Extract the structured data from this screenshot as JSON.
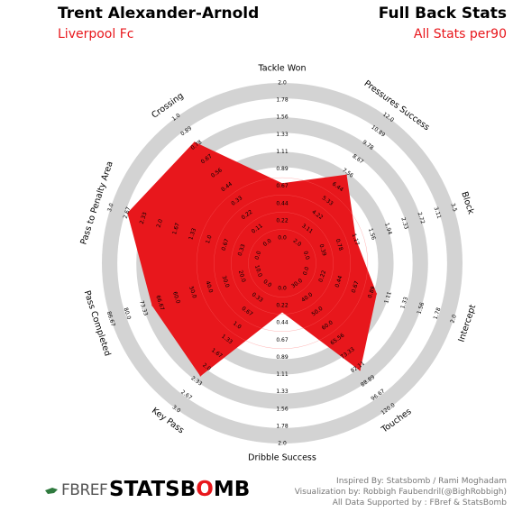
{
  "header": {
    "player": "Trent Alexander-Arnold",
    "team": "Liverpool Fc",
    "title": "Full Back Stats",
    "subtitle": "All Stats per90"
  },
  "colors": {
    "accent": "#e8171c",
    "ring": "#d3d3d3"
  },
  "chart_data": {
    "type": "radar",
    "params": [
      {
        "label": "Tackle Won",
        "ticks": [
          "0.0",
          "0.22",
          "0.44",
          "0.67",
          "0.89",
          "1.11",
          "1.33",
          "1.56",
          "1.78",
          "2.0"
        ],
        "value": 0.7
      },
      {
        "label": "Pressures Success",
        "ticks": [
          "2.0",
          "3.11",
          "4.22",
          "5.33",
          "6.44",
          "7.56",
          "8.67",
          "9.78",
          "10.89",
          "12.0"
        ],
        "value": 7.4
      },
      {
        "label": "Block",
        "ticks": [
          "0.0",
          "0.39",
          "0.78",
          "1.17",
          "1.56",
          "1.94",
          "2.33",
          "2.72",
          "3.11",
          "3.5"
        ],
        "value": 1.17
      },
      {
        "label": "Intercept",
        "ticks": [
          "0.0",
          "0.22",
          "0.44",
          "0.67",
          "0.89",
          "1.11",
          "1.33",
          "1.56",
          "1.78",
          "2.0"
        ],
        "value": 0.95
      },
      {
        "label": "Touches",
        "ticks": [
          "30.0",
          "40.0",
          "50.0",
          "60.0",
          "65.56",
          "73.33",
          "82.11",
          "88.89",
          "96.67",
          "120.0"
        ],
        "value": 92.0
      },
      {
        "label": "Dribble Success",
        "ticks": [
          "0.0",
          "0.22",
          "0.44",
          "0.67",
          "0.89",
          "1.11",
          "1.33",
          "1.56",
          "1.78",
          "2.0"
        ],
        "value": 0.3
      },
      {
        "label": "Key Pass",
        "ticks": [
          "0.0",
          "0.33",
          "0.67",
          "1.0",
          "1.33",
          "1.67",
          "2.0",
          "2.33",
          "2.67",
          "3.0"
        ],
        "value": 2.2
      },
      {
        "label": "Pass Completed",
        "ticks": [
          "10.0",
          "20.0",
          "30.0",
          "40.0",
          "50.0",
          "60.0",
          "66.67",
          "73.33",
          "80.0",
          "86.67"
        ],
        "value": 65.0
      },
      {
        "label": "Pass to Penalty Area",
        "ticks": [
          "0.0",
          "0.33",
          "0.67",
          "1.0",
          "1.33",
          "1.67",
          "2.0",
          "2.33",
          "2.67",
          "3.0"
        ],
        "value": 2.65
      },
      {
        "label": "Crossing",
        "ticks": [
          "0.0",
          "0.11",
          "0.22",
          "0.33",
          "0.44",
          "0.56",
          "0.67",
          "0.78",
          "0.89",
          "1.0"
        ],
        "value": 0.8
      }
    ],
    "tick_labels_shown": {
      "Tackle Won": [
        "0.0",
        "0.22",
        "0.44",
        "0.67",
        "0.89",
        "1.11",
        "1.33",
        "1.56",
        "1.78",
        "2.0"
      ],
      "Pressures Success": [
        "2.0",
        "2.67",
        "3.33",
        "4.0",
        "5.0",
        "5.76",
        "6.0",
        "4.33",
        "4.89",
        "5.44",
        "6.0"
      ],
      "Block": [
        "0.39",
        "0.78",
        "1.17",
        "1.56",
        "1.94",
        "2.33",
        "2.72",
        "3.11",
        "3.5"
      ],
      "Intercept": [
        "0.44",
        "0.89",
        "1.11",
        "1.33",
        "1.56",
        "1.78",
        "2.0"
      ],
      "Touches": [
        "0.0",
        "0.0",
        "50.0",
        "65.56",
        "73.33",
        "82.11",
        "88.89",
        "96.67",
        "104.44",
        "112.22",
        "120.0"
      ],
      "Dribble Success": [
        "0.0",
        "0.22",
        "0.44",
        "0.67",
        "0.89",
        "1.11",
        "1.33",
        "1.56",
        "1.78",
        "2.0"
      ],
      "Key Pass": [
        "0.33",
        "0.67",
        "1.0",
        "1.33",
        "1.67",
        "2.0",
        "2.33",
        "2.67",
        "3.0"
      ],
      "Pass Completed": [
        "0.0",
        "0.0",
        "26.67",
        "33.33",
        "40.0",
        "53.33",
        "59.33",
        "66.67",
        "73.33",
        "80.0"
      ],
      "Pass to Penalty Area": [
        "0.0",
        "0.33",
        "0.67",
        "1.0",
        "1.33",
        "1.67",
        "2.0",
        "2.33",
        "2.67",
        "3.0"
      ],
      "Crossing": [
        "0.0",
        "0.11",
        "0.22",
        "0.33",
        "0.44",
        "0.56",
        "0.67",
        "0.78",
        "0.89",
        "1.0"
      ]
    },
    "rings": 10,
    "grid": true
  },
  "footer": {
    "fbref": "FBREF",
    "statsbomb_black": "STATSB",
    "statsbomb_red": "O",
    "statsbomb_end": "MB",
    "credit1": "Inspired By: Statsbomb / Rami Moghadam",
    "credit2": "Visualization by: Robbigh Faubendril(@BighRobbigh)",
    "credit3": "All Data Supported by : FBref & StatsBomb"
  }
}
